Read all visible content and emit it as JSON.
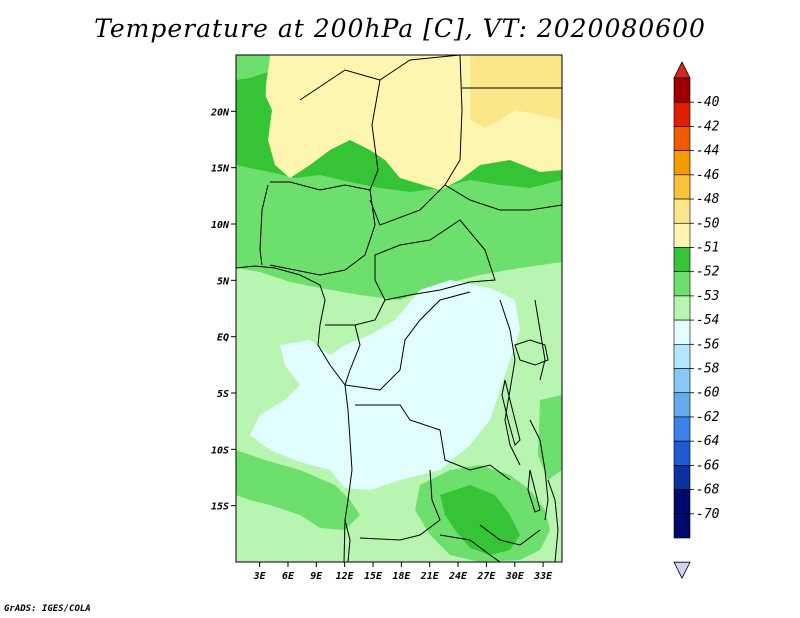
{
  "title": "Temperature at 200hPa [C], VT: 2020080600",
  "credit": "GrADS: IGES/COLA",
  "map": {
    "lat_ticks": [
      {
        "value": 20,
        "label": "20N"
      },
      {
        "value": 15,
        "label": "15N"
      },
      {
        "value": 10,
        "label": "10N"
      },
      {
        "value": 5,
        "label": "5N"
      },
      {
        "value": 0,
        "label": "EQ"
      },
      {
        "value": -5,
        "label": "5S"
      },
      {
        "value": -10,
        "label": "10S"
      },
      {
        "value": -15,
        "label": "15S"
      }
    ],
    "lon_ticks": [
      {
        "value": 3,
        "label": "3E"
      },
      {
        "value": 6,
        "label": "6E"
      },
      {
        "value": 9,
        "label": "9E"
      },
      {
        "value": 12,
        "label": "12E"
      },
      {
        "value": 15,
        "label": "15E"
      },
      {
        "value": 18,
        "label": "18E"
      },
      {
        "value": 21,
        "label": "21E"
      },
      {
        "value": 24,
        "label": "24E"
      },
      {
        "value": 27,
        "label": "27E"
      },
      {
        "value": 30,
        "label": "30E"
      },
      {
        "value": 33,
        "label": "33E"
      }
    ],
    "lon_range": [
      0.5,
      35
    ],
    "lat_range": [
      -20,
      25
    ]
  },
  "colorbar": {
    "levels": [
      {
        "label": "-40",
        "color": "#a00000"
      },
      {
        "label": "-42",
        "color": "#e01e00"
      },
      {
        "label": "-44",
        "color": "#f05a00"
      },
      {
        "label": "-46",
        "color": "#f59a00"
      },
      {
        "label": "-48",
        "color": "#f9c23a"
      },
      {
        "label": "-50",
        "color": "#fbe68a"
      },
      {
        "label": "-51",
        "color": "#fdf6b0"
      },
      {
        "label": "-52",
        "color": "#35c435"
      },
      {
        "label": "-53",
        "color": "#6ddf6d"
      },
      {
        "label": "-54",
        "color": "#b8f5b0"
      },
      {
        "label": "-56",
        "color": "#e2fdfd"
      },
      {
        "label": "-58",
        "color": "#b4e6ff"
      },
      {
        "label": "-60",
        "color": "#87c8f5"
      },
      {
        "label": "-62",
        "color": "#64aaf0"
      },
      {
        "label": "-64",
        "color": "#3c82e6"
      },
      {
        "label": "-66",
        "color": "#1e5ad2"
      },
      {
        "label": "-68",
        "color": "#0a32a0"
      },
      {
        "label": "-70",
        "color": "#000a6e"
      }
    ],
    "over_color": "#d2281e",
    "under_color": "#d2d2f5"
  }
}
